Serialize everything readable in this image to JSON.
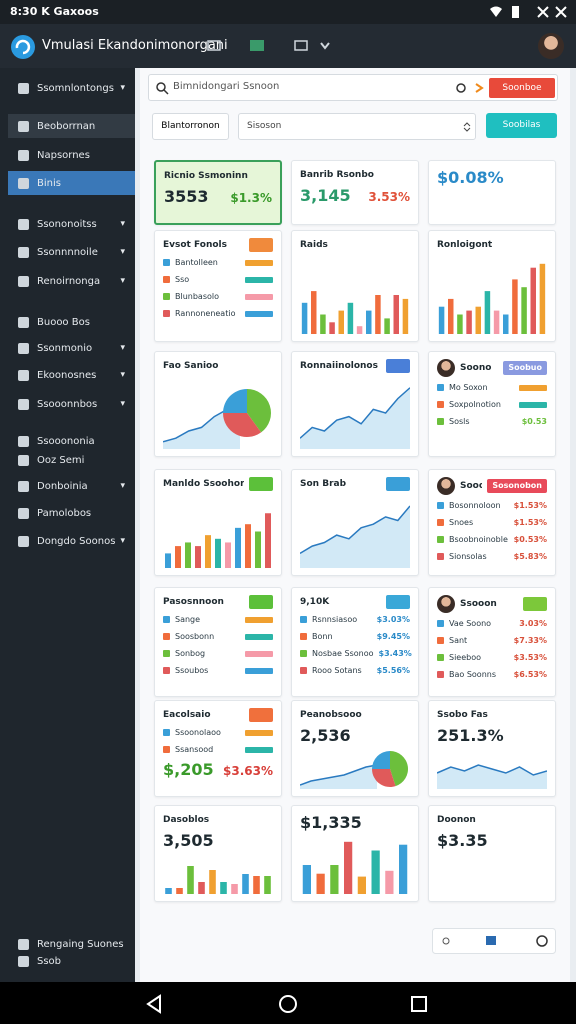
{
  "status_bar": {
    "time": "8:30 K Gaxoos"
  },
  "header": {
    "title": "Vmulasi Ekandonimonorgani"
  },
  "sidebar": {
    "items": [
      {
        "label": "Ssomnlontongs",
        "chevron": true
      },
      {
        "label": "Beoborrnan",
        "state": "current"
      },
      {
        "label": "Napsornes"
      },
      {
        "label": "Binis",
        "state": "active"
      },
      {
        "label": "Ssononoitss",
        "chevron": true
      },
      {
        "label": "Ssonnnnoile",
        "chevron": true
      },
      {
        "label": "Renoirnonga",
        "chevron": true
      },
      {
        "label": "Buooo Bos"
      },
      {
        "label": "Ssonmonio",
        "chevron": true
      },
      {
        "label": "Ekoonosnes",
        "chevron": true
      },
      {
        "label": "Ssooonnbos",
        "chevron": true
      },
      {
        "label": "Ssooononia"
      },
      {
        "label": "Ooz Semi"
      },
      {
        "label": "Donboinia",
        "chevron": true
      },
      {
        "label": "Pamolobos"
      },
      {
        "label": "Dongdo Soonos",
        "chevron": true
      }
    ],
    "footer": [
      "Rengaing Suones",
      "Ssob"
    ]
  },
  "search": {
    "placeholder": "Bimnidongari Ssnoon",
    "button": "Soonboe"
  },
  "filters": {
    "button": "Blantorronon",
    "select": "Sisoson",
    "action": "Soobilas"
  },
  "palette": [
    "#3a9fd8",
    "#f06c3c",
    "#6cbf3c",
    "#e05a5a",
    "#f0a030",
    "#2bb5a8",
    "#f59aa8"
  ],
  "cards": [
    {
      "title": "Ricnio Ssmoninn",
      "highlight": true,
      "stats": [
        {
          "text": "3553",
          "color": "#1e2a30"
        },
        {
          "text": "$1.3%",
          "color": "#3a9a2a"
        }
      ]
    },
    {
      "title": "Banrib Rsonbo",
      "stats": [
        {
          "text": "3,145",
          "color": "#2a9a6a"
        },
        {
          "text": "3.53%",
          "color": "#e0523a"
        }
      ]
    },
    {
      "stats": [
        {
          "text": "$0.08%",
          "color": "#2a8ac8"
        }
      ]
    },
    {
      "title": "Evsot Fonols",
      "badge": {
        "color": "#f08a3c"
      },
      "items": [
        {
          "label": "Bantolleen"
        },
        {
          "label": "Sso"
        },
        {
          "label": "Blunbasolo"
        },
        {
          "label": "Rannoneneatio"
        }
      ]
    },
    {
      "title": "Raids",
      "chart": {
        "type": "bar",
        "ylim": [
          0,
          100
        ],
        "values": [
          40,
          55,
          25,
          15,
          30,
          40,
          10,
          30,
          50,
          20,
          50,
          45
        ]
      }
    },
    {
      "title": "Ronloigont",
      "chart": {
        "type": "bar",
        "ylim": [
          0,
          100
        ],
        "values": [
          35,
          45,
          25,
          30,
          35,
          55,
          30,
          25,
          70,
          60,
          85,
          90
        ]
      }
    },
    {
      "title": "Fao Sanioo",
      "chart": {
        "type": "area",
        "ylim": [
          0,
          100
        ],
        "values": [
          10,
          15,
          25,
          30,
          45,
          55,
          40
        ],
        "slices": [
          40,
          35,
          25
        ]
      }
    },
    {
      "title": "Ronnaiinolonos",
      "badge": {
        "color": "#4a7fd8"
      },
      "chart": {
        "type": "area",
        "ylim": [
          0,
          100
        ],
        "values": [
          15,
          30,
          25,
          40,
          45,
          35,
          55,
          50,
          70,
          85
        ]
      }
    },
    {
      "title": "Soono",
      "avatar": true,
      "badge": {
        "text": "Soobuo",
        "color": "#8a9ae0"
      },
      "items": [
        {
          "label": "Mo Soxon"
        },
        {
          "label": "Soxpolnotion"
        },
        {
          "label": "Sosls",
          "value": "$0.53"
        }
      ]
    },
    {
      "title": "Manldo Ssoohon",
      "badge": {
        "color": "#5cc03a"
      },
      "chart": {
        "type": "bar",
        "ylim": [
          0,
          100
        ],
        "values": [
          20,
          30,
          35,
          30,
          45,
          40,
          35,
          55,
          60,
          50,
          75
        ]
      }
    },
    {
      "title": "Son Brab",
      "badge": {
        "color": "#3a9fd8"
      },
      "chart": {
        "type": "area",
        "ylim": [
          0,
          100
        ],
        "values": [
          20,
          30,
          35,
          45,
          40,
          55,
          60,
          70,
          65,
          85
        ]
      }
    },
    {
      "title": "Soooon",
      "avatar": true,
      "badge": {
        "text": "Sosonobon",
        "color": "#e84a5a"
      },
      "value_color": "#d8503a",
      "items": [
        {
          "label": "Bosonnoloon",
          "value": "$1.53%"
        },
        {
          "label": "Snoes",
          "value": "$1.53%"
        },
        {
          "label": "Bsoobnoinoble",
          "value": "$0.53%"
        },
        {
          "label": "Sionsolas",
          "value": "$5.83%"
        }
      ]
    },
    {
      "title": "Pasosnnoon",
      "badge": {
        "color": "#5cc03a"
      },
      "items": [
        {
          "label": "Sange"
        },
        {
          "label": "Soosbonn"
        },
        {
          "label": "Sonbog"
        },
        {
          "label": "Ssoubos"
        }
      ]
    },
    {
      "title": "9,10K",
      "badge": {
        "color": "#3aa8d8"
      },
      "value_color": "#2a8ac8",
      "items": [
        {
          "label": "Rsnnsiasoo",
          "value": "$3.03%"
        },
        {
          "label": "Bonn",
          "value": "$9.45%"
        },
        {
          "label": "Nosbae Ssonoo",
          "value": "$3.43%"
        },
        {
          "label": "Rooo Sotans",
          "value": "$5.56%"
        }
      ]
    },
    {
      "title": "Ssooon",
      "avatar": true,
      "badge": {
        "color": "#7cc83a"
      },
      "value_color": "#d8503a",
      "items": [
        {
          "label": "Vae Soono",
          "value": "3.03%"
        },
        {
          "label": "Sant",
          "value": "$7.33%"
        },
        {
          "label": "Sieeboo",
          "value": "$3.53%"
        },
        {
          "label": "Bao Soonns",
          "value": "$6.53%"
        }
      ]
    },
    {
      "title": "Eacolsaio",
      "badge": {
        "color": "#f0703c"
      },
      "items": [
        {
          "label": "Ssoonolaoo"
        },
        {
          "label": "Ssansood"
        }
      ],
      "stats": [
        {
          "text": "$,205",
          "color": "#3a9a2a"
        },
        {
          "text": "$3.63%",
          "color": "#d8403a"
        }
      ]
    },
    {
      "title": "Peanobsooo",
      "stats": [
        {
          "text": "2,536",
          "color": "#1e2a30"
        }
      ],
      "chart": {
        "type": "area",
        "ylim": [
          0,
          100
        ],
        "values": [
          10,
          20,
          25,
          30,
          35,
          45,
          55,
          60
        ],
        "slices": [
          45,
          30,
          25
        ]
      }
    },
    {
      "title": "Ssobo Fas",
      "stats": [
        {
          "text": "251.3%",
          "color": "#1e2a30"
        }
      ],
      "chart": {
        "type": "area",
        "ylim": [
          0,
          100
        ],
        "values": [
          40,
          55,
          45,
          60,
          50,
          40,
          55,
          35,
          45
        ]
      }
    },
    {
      "title": "Dasoblos",
      "stats": [
        {
          "text": "3,505",
          "color": "#1e2a30"
        }
      ],
      "chart": {
        "type": "bar",
        "ylim": [
          0,
          100
        ],
        "values": [
          15,
          15,
          70,
          30,
          60,
          30,
          25,
          50,
          45,
          45
        ]
      }
    },
    {
      "stats": [
        {
          "text": "$1,335",
          "color": "#1e2a30"
        }
      ],
      "chart": {
        "type": "bar",
        "ylim": [
          0,
          100
        ],
        "values": [
          50,
          35,
          50,
          90,
          30,
          75,
          40,
          85
        ]
      }
    },
    {
      "title": "Doonon",
      "stats": [
        {
          "text": "$3.35",
          "color": "#1e2a30"
        }
      ]
    }
  ]
}
